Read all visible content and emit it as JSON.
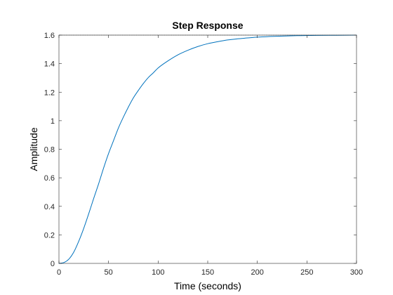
{
  "chart_data": {
    "type": "line",
    "title": "Step Response",
    "xlabel": "Time (seconds)",
    "ylabel": "Amplitude",
    "xlim": [
      0,
      300
    ],
    "ylim": [
      0,
      1.6
    ],
    "xticks": [
      0,
      50,
      100,
      150,
      200,
      250,
      300
    ],
    "xtick_labels": [
      "0",
      "50",
      "100",
      "150",
      "200",
      "250",
      "300"
    ],
    "yticks": [
      0,
      0.2,
      0.4,
      0.6,
      0.8,
      1,
      1.2,
      1.4,
      1.6
    ],
    "ytick_labels": [
      "0",
      "0.2",
      "0.4",
      "0.6",
      "0.8",
      "1",
      "1.2",
      "1.4",
      "1.6"
    ],
    "grid": false,
    "legend": "none",
    "series": [
      {
        "color": "#0072bd",
        "x": [
          0,
          5,
          10,
          15,
          20,
          25,
          30,
          35,
          40,
          45,
          50,
          55,
          60,
          65,
          70,
          75,
          80,
          85,
          90,
          95,
          100,
          110,
          120,
          130,
          140,
          150,
          160,
          170,
          180,
          190,
          200,
          220,
          240,
          260,
          280,
          300
        ],
        "y": [
          0,
          0.006,
          0.03,
          0.08,
          0.156,
          0.246,
          0.348,
          0.455,
          0.558,
          0.668,
          0.77,
          0.86,
          0.95,
          1.026,
          1.096,
          1.16,
          1.212,
          1.26,
          1.302,
          1.335,
          1.37,
          1.42,
          1.462,
          1.494,
          1.52,
          1.54,
          1.554,
          1.566,
          1.574,
          1.58,
          1.586,
          1.592,
          1.596,
          1.598,
          1.599,
          1.6
        ]
      }
    ]
  }
}
